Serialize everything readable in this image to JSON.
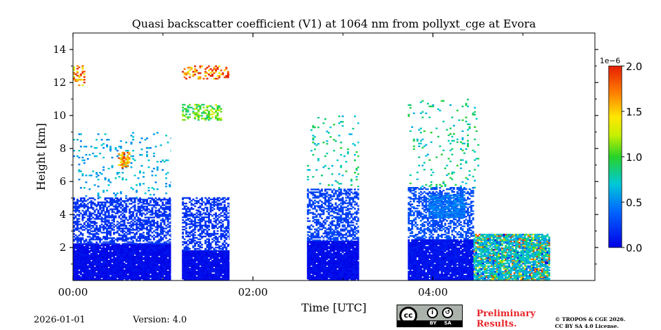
{
  "chart_data": {
    "type": "heatmap",
    "title": "Quasi backscatter coefficient (V1) at 1064 nm from pollyxt_cge at Evora",
    "xlabel": "Time [UTC]",
    "ylabel": "Height [km]",
    "x_unit": "hours UTC",
    "xlim": [
      0,
      5.8
    ],
    "ylim": [
      0,
      15
    ],
    "x_ticks": [
      {
        "value": 0,
        "label": "00:00"
      },
      {
        "value": 2,
        "label": "02:00"
      },
      {
        "value": 4,
        "label": "04:00"
      }
    ],
    "x_minor_ticks": [
      1,
      3,
      5
    ],
    "y_ticks": [
      {
        "value": 2,
        "label": "2"
      },
      {
        "value": 4,
        "label": "4"
      },
      {
        "value": 6,
        "label": "6"
      },
      {
        "value": 8,
        "label": "8"
      },
      {
        "value": 10,
        "label": "10"
      },
      {
        "value": 12,
        "label": "12"
      },
      {
        "value": 14,
        "label": "14"
      }
    ],
    "colorbar": {
      "min": 0.0,
      "max": 2.0,
      "exponent_label": "1e−6",
      "colormap": "jet",
      "ticks": [
        {
          "value": 0.0,
          "label": "0.0"
        },
        {
          "value": 0.5,
          "label": "0.5"
        },
        {
          "value": 1.0,
          "label": "1.0"
        },
        {
          "value": 1.5,
          "label": "1.5"
        },
        {
          "value": 2.0,
          "label": "2.0"
        }
      ]
    },
    "signal_gaps_hours": [
      [
        1.09,
        1.21
      ],
      [
        1.74,
        1.88
      ],
      [
        1.92,
        2.4
      ],
      [
        3.18,
        3.72
      ],
      [
        5.32,
        5.8
      ]
    ],
    "regions": [
      {
        "name": "boundary-layer",
        "t": [
          0.0,
          1.09
        ],
        "h": [
          0.0,
          2.2
        ],
        "value": 0.05,
        "density": 0.97
      },
      {
        "name": "boundary-layer",
        "t": [
          1.21,
          1.74
        ],
        "h": [
          0.0,
          1.8
        ],
        "value": 0.05,
        "density": 0.97
      },
      {
        "name": "boundary-layer",
        "t": [
          2.6,
          3.18
        ],
        "h": [
          0.0,
          2.4
        ],
        "value": 0.05,
        "density": 0.97
      },
      {
        "name": "boundary-layer",
        "t": [
          3.72,
          4.45
        ],
        "h": [
          0.0,
          2.5
        ],
        "value": 0.08,
        "density": 0.95
      },
      {
        "name": "aerosol-mix",
        "t": [
          4.45,
          5.3
        ],
        "h": [
          0.0,
          2.8
        ],
        "value": 0.7,
        "density": 0.85
      },
      {
        "name": "aerosol-scatter",
        "t": [
          0.0,
          1.09
        ],
        "h": [
          2.2,
          5.0
        ],
        "value": 0.2,
        "density": 0.55
      },
      {
        "name": "aerosol-scatter",
        "t": [
          1.21,
          1.74
        ],
        "h": [
          1.8,
          5.0
        ],
        "value": 0.2,
        "density": 0.5
      },
      {
        "name": "aerosol-scatter",
        "t": [
          2.6,
          3.18
        ],
        "h": [
          2.4,
          5.5
        ],
        "value": 0.25,
        "density": 0.55
      },
      {
        "name": "aerosol-scatter",
        "t": [
          3.72,
          4.45
        ],
        "h": [
          2.5,
          5.6
        ],
        "value": 0.3,
        "density": 0.5
      },
      {
        "name": "elevated-layer",
        "t": [
          3.95,
          4.35
        ],
        "h": [
          3.8,
          5.2
        ],
        "value": 0.45,
        "density": 0.8
      },
      {
        "name": "sparse-upper",
        "t": [
          0.0,
          1.09
        ],
        "h": [
          5.0,
          9.0
        ],
        "value": 0.6,
        "density": 0.07
      },
      {
        "name": "sparse-upper",
        "t": [
          2.6,
          3.18
        ],
        "h": [
          5.5,
          10.0
        ],
        "value": 0.8,
        "density": 0.06
      },
      {
        "name": "sparse-upper",
        "t": [
          3.72,
          4.5
        ],
        "h": [
          5.6,
          11.0
        ],
        "value": 0.8,
        "density": 0.06
      },
      {
        "name": "cirrus",
        "t": [
          1.21,
          1.65
        ],
        "h": [
          9.7,
          10.7
        ],
        "value": 1.05,
        "density": 0.45
      },
      {
        "name": "cirrus",
        "t": [
          1.21,
          1.74
        ],
        "h": [
          12.2,
          13.0
        ],
        "value": 1.75,
        "density": 0.3
      },
      {
        "name": "cirrus",
        "t": [
          0.0,
          0.12
        ],
        "h": [
          11.8,
          13.0
        ],
        "value": 1.6,
        "density": 0.4
      },
      {
        "name": "cloud-patch",
        "t": [
          0.5,
          0.62
        ],
        "h": [
          6.8,
          7.8
        ],
        "value": 1.6,
        "density": 0.45
      }
    ]
  },
  "footer": {
    "date": "2026-01-01",
    "version": "Version: 4.0",
    "license_by": "BY",
    "license_sa": "SA",
    "preliminary_line1": "Preliminary",
    "preliminary_line2": "Results.",
    "copyright_line1": "© TROPOS & CGE 2026.",
    "copyright_line2": "CC BY SA 4.0 License.",
    "preliminary_color": "#e8262a"
  }
}
